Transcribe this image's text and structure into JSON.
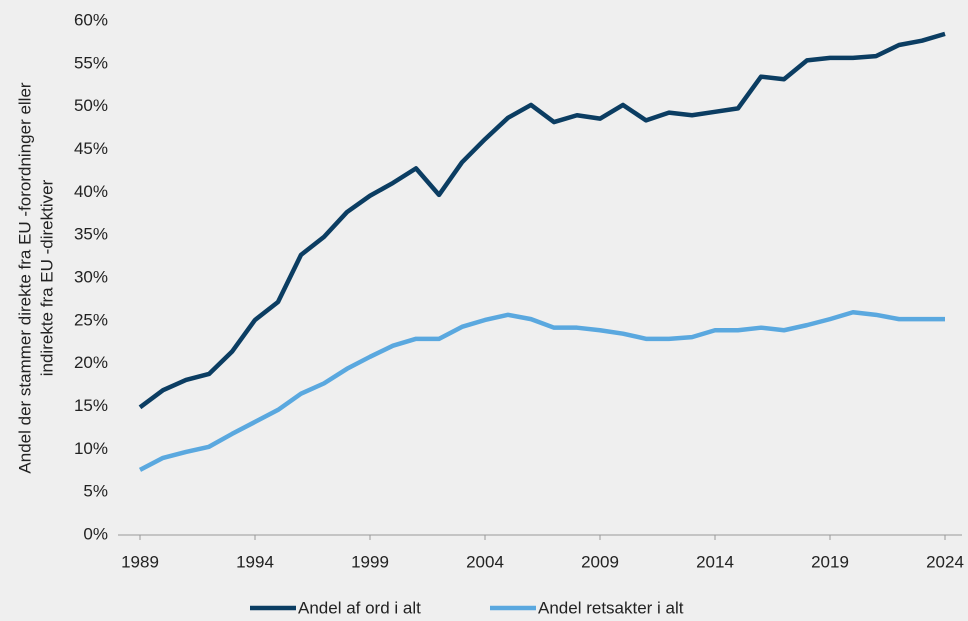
{
  "chart_data": {
    "type": "line",
    "ylabel_lines": [
      "Andel der stammer direkte fra EU -forordninger eller",
      "indirekte fra EU -direktiver"
    ],
    "x": [
      1989,
      1990,
      1991,
      1992,
      1993,
      1994,
      1995,
      1996,
      1997,
      1998,
      1999,
      2000,
      2001,
      2002,
      2003,
      2004,
      2005,
      2006,
      2007,
      2008,
      2009,
      2010,
      2011,
      2012,
      2013,
      2014,
      2015,
      2016,
      2017,
      2018,
      2019,
      2020,
      2021,
      2022,
      2023,
      2024
    ],
    "series": [
      {
        "name": "Andel af ord i alt",
        "color": "#0b3d62",
        "values": [
          14.9,
          16.9,
          18.1,
          18.8,
          21.4,
          25.1,
          27.2,
          32.7,
          34.8,
          37.7,
          39.6,
          41.1,
          42.8,
          39.7,
          43.5,
          46.2,
          48.7,
          50.2,
          48.2,
          49.0,
          48.6,
          50.2,
          48.4,
          49.3,
          49.0,
          49.4,
          49.8,
          53.5,
          53.2,
          55.4,
          55.7,
          55.7,
          55.9,
          57.2,
          57.7,
          58.5
        ]
      },
      {
        "name": "Andel retsakter i alt",
        "color": "#5aa8df",
        "values": [
          7.6,
          9.0,
          9.7,
          10.3,
          11.8,
          13.2,
          14.6,
          16.5,
          17.7,
          19.4,
          20.8,
          22.1,
          22.9,
          22.9,
          24.3,
          25.1,
          25.7,
          25.2,
          24.2,
          24.2,
          23.9,
          23.5,
          22.9,
          22.9,
          23.1,
          23.9,
          23.9,
          24.2,
          23.9,
          24.5,
          25.2,
          26.0,
          25.7,
          25.2,
          25.2,
          25.2
        ]
      }
    ],
    "xlim": [
      1989,
      2024
    ],
    "xticks": [
      1989,
      1994,
      1999,
      2004,
      2009,
      2014,
      2019,
      2024
    ],
    "ylim": [
      0,
      60
    ],
    "yticks": [
      {
        "value": 0,
        "label": "0%"
      },
      {
        "value": 5,
        "label": "5%"
      },
      {
        "value": 10,
        "label": "10%"
      },
      {
        "value": 15,
        "label": "15%"
      },
      {
        "value": 20,
        "label": "20%"
      },
      {
        "value": 25,
        "label": "25%"
      },
      {
        "value": 30,
        "label": "30%"
      },
      {
        "value": 35,
        "label": "35%"
      },
      {
        "value": 40,
        "label": "40%"
      },
      {
        "value": 45,
        "label": "45%"
      },
      {
        "value": 50,
        "label": "50%"
      },
      {
        "value": 55,
        "label": "55%"
      },
      {
        "value": 60,
        "label": "60%"
      }
    ],
    "legend": "bottom"
  }
}
